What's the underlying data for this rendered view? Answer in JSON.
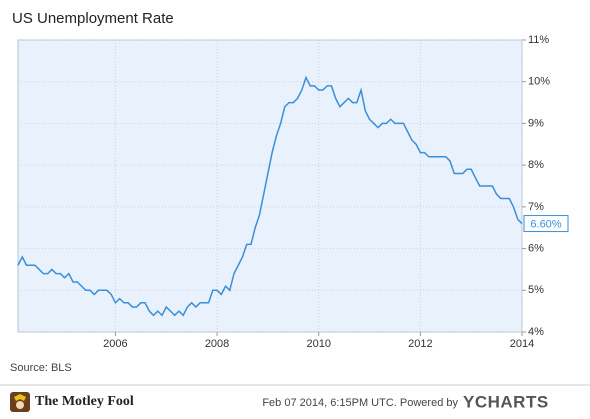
{
  "chart_data": {
    "type": "line",
    "title": "US Unemployment Rate",
    "source": "Source: BLS",
    "footer": {
      "brand": "The Motley Fool",
      "stamp": "Feb 07 2014, 6:15PM UTC. Powered by",
      "provider": "YCHARTS"
    },
    "x": [
      2004.083,
      2004.167,
      2004.25,
      2004.333,
      2004.417,
      2004.5,
      2004.583,
      2004.667,
      2004.75,
      2004.833,
      2004.917,
      2005,
      2005.083,
      2005.167,
      2005.25,
      2005.333,
      2005.417,
      2005.5,
      2005.583,
      2005.667,
      2005.75,
      2005.833,
      2005.917,
      2006,
      2006.083,
      2006.167,
      2006.25,
      2006.333,
      2006.417,
      2006.5,
      2006.583,
      2006.667,
      2006.75,
      2006.833,
      2006.917,
      2007,
      2007.083,
      2007.167,
      2007.25,
      2007.333,
      2007.417,
      2007.5,
      2007.583,
      2007.667,
      2007.75,
      2007.833,
      2007.917,
      2008,
      2008.083,
      2008.167,
      2008.25,
      2008.333,
      2008.417,
      2008.5,
      2008.583,
      2008.667,
      2008.75,
      2008.833,
      2008.917,
      2009,
      2009.083,
      2009.167,
      2009.25,
      2009.333,
      2009.417,
      2009.5,
      2009.583,
      2009.667,
      2009.75,
      2009.833,
      2009.917,
      2010,
      2010.083,
      2010.167,
      2010.25,
      2010.333,
      2010.417,
      2010.5,
      2010.583,
      2010.667,
      2010.75,
      2010.833,
      2010.917,
      2011,
      2011.083,
      2011.167,
      2011.25,
      2011.333,
      2011.417,
      2011.5,
      2011.583,
      2011.667,
      2011.75,
      2011.833,
      2011.917,
      2012,
      2012.083,
      2012.167,
      2012.25,
      2012.333,
      2012.417,
      2012.5,
      2012.583,
      2012.667,
      2012.75,
      2012.833,
      2012.917,
      2013,
      2013.083,
      2013.167,
      2013.25,
      2013.333,
      2013.417,
      2013.5,
      2013.583,
      2013.667,
      2013.75,
      2013.833,
      2013.917,
      2014
    ],
    "series": [
      {
        "name": "US Unemployment Rate",
        "color": "#3a8fd9",
        "values": [
          5.6,
          5.8,
          5.6,
          5.6,
          5.6,
          5.5,
          5.4,
          5.4,
          5.5,
          5.4,
          5.4,
          5.3,
          5.4,
          5.2,
          5.2,
          5.1,
          5.0,
          5.0,
          4.9,
          5.0,
          5.0,
          5.0,
          4.9,
          4.7,
          4.8,
          4.7,
          4.7,
          4.6,
          4.6,
          4.7,
          4.7,
          4.5,
          4.4,
          4.5,
          4.4,
          4.6,
          4.5,
          4.4,
          4.5,
          4.4,
          4.6,
          4.7,
          4.6,
          4.7,
          4.7,
          4.7,
          5.0,
          5.0,
          4.9,
          5.1,
          5.0,
          5.4,
          5.6,
          5.8,
          6.1,
          6.1,
          6.5,
          6.8,
          7.3,
          7.8,
          8.3,
          8.7,
          9.0,
          9.4,
          9.5,
          9.5,
          9.6,
          9.8,
          10.1,
          9.9,
          9.9,
          9.8,
          9.8,
          9.9,
          9.9,
          9.6,
          9.4,
          9.5,
          9.6,
          9.5,
          9.5,
          9.8,
          9.3,
          9.1,
          9.0,
          8.9,
          9.0,
          9.0,
          9.1,
          9.0,
          9.0,
          9.0,
          8.8,
          8.6,
          8.5,
          8.3,
          8.3,
          8.2,
          8.2,
          8.2,
          8.2,
          8.2,
          8.1,
          7.8,
          7.8,
          7.8,
          7.9,
          7.9,
          7.7,
          7.5,
          7.5,
          7.5,
          7.5,
          7.3,
          7.2,
          7.2,
          7.2,
          7.0,
          6.7,
          6.6
        ]
      }
    ],
    "last_value": {
      "value": 6.6,
      "label": "6.60%"
    },
    "xlim": [
      2004.083,
      2014
    ],
    "xticks": [
      2006,
      2008,
      2010,
      2012,
      2014
    ],
    "ylim": [
      4,
      11
    ],
    "yticks": [
      {
        "value": 4,
        "label": "4%"
      },
      {
        "value": 5,
        "label": "5%"
      },
      {
        "value": 6,
        "label": "6%"
      },
      {
        "value": 7,
        "label": "7%"
      },
      {
        "value": 8,
        "label": "8%"
      },
      {
        "value": 9,
        "label": "9%"
      },
      {
        "value": 10,
        "label": "10%"
      },
      {
        "value": 11,
        "label": "11%"
      }
    ],
    "grid": true
  }
}
